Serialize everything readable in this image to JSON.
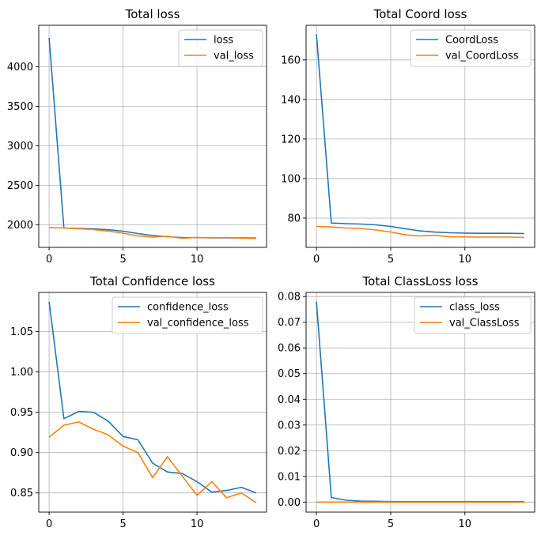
{
  "figure": {
    "x_values": [
      0,
      1,
      2,
      3,
      4,
      5,
      6,
      7,
      8,
      9,
      10,
      11,
      12,
      13,
      14
    ]
  },
  "colors": {
    "series1": "#1f77b4",
    "series2": "#ff7f0e",
    "grid": "#b0b0b0",
    "axis": "#000000"
  },
  "chart_data": [
    {
      "type": "line",
      "title": "Total loss",
      "xlim": [
        -0.7,
        14.7
      ],
      "ylim": [
        1715,
        4525
      ],
      "xticks": [
        0,
        5,
        10
      ],
      "yticks": [
        2000,
        2500,
        3000,
        3500,
        4000
      ],
      "ytick_labels": [
        "2000",
        "2500",
        "3000",
        "3500",
        "4000"
      ],
      "grid": true,
      "legend": "top-right",
      "series": [
        {
          "name": "loss",
          "values": [
            4365,
            1960,
            1955,
            1950,
            1938,
            1920,
            1890,
            1865,
            1850,
            1840,
            1838,
            1836,
            1835,
            1834,
            1833
          ]
        },
        {
          "name": "val_loss",
          "values": [
            1965,
            1960,
            1950,
            1940,
            1920,
            1895,
            1860,
            1845,
            1855,
            1830,
            1840,
            1836,
            1840,
            1830,
            1828
          ]
        }
      ]
    },
    {
      "type": "line",
      "title": "Total Coord loss",
      "xlim": [
        -0.7,
        14.7
      ],
      "ylim": [
        65.2,
        177.5
      ],
      "xticks": [
        0,
        5,
        10
      ],
      "yticks": [
        80,
        100,
        120,
        140,
        160
      ],
      "ytick_labels": [
        "80",
        "100",
        "120",
        "140",
        "160"
      ],
      "grid": true,
      "legend": "top-right",
      "series": [
        {
          "name": "CoordLoss",
          "values": [
            173,
            77.5,
            77.2,
            77.0,
            76.6,
            75.8,
            74.6,
            73.5,
            72.9,
            72.6,
            72.4,
            72.3,
            72.3,
            72.3,
            72.2
          ]
        },
        {
          "name": "val_CoordLoss",
          "values": [
            75.8,
            75.5,
            75.0,
            74.8,
            74.0,
            73.0,
            71.5,
            71.0,
            71.3,
            70.5,
            70.5,
            70.4,
            70.4,
            70.4,
            70.2
          ]
        }
      ]
    },
    {
      "type": "line",
      "title": "Total Confidence loss",
      "xlim": [
        -0.7,
        14.7
      ],
      "ylim": [
        0.8262,
        1.0986
      ],
      "xticks": [
        0,
        5,
        10
      ],
      "yticks": [
        0.85,
        0.9,
        0.95,
        1.0,
        1.05
      ],
      "ytick_labels": [
        "0.85",
        "0.90",
        "0.95",
        "1.00",
        "1.05"
      ],
      "grid": true,
      "legend": "top-right",
      "series": [
        {
          "name": "confidence_loss",
          "values": [
            1.087,
            0.942,
            0.951,
            0.95,
            0.939,
            0.92,
            0.916,
            0.887,
            0.876,
            0.874,
            0.864,
            0.851,
            0.853,
            0.857,
            0.85
          ]
        },
        {
          "name": "val_confidence_loss",
          "values": [
            0.919,
            0.934,
            0.938,
            0.929,
            0.922,
            0.908,
            0.9,
            0.869,
            0.895,
            0.871,
            0.847,
            0.864,
            0.844,
            0.85,
            0.838
          ]
        }
      ]
    },
    {
      "type": "line",
      "title": "Total ClassLoss loss",
      "xlim": [
        -0.7,
        14.7
      ],
      "ylim": [
        -0.0039,
        0.0816
      ],
      "xticks": [
        0,
        5,
        10
      ],
      "yticks": [
        0.0,
        0.01,
        0.02,
        0.03,
        0.04,
        0.05,
        0.06,
        0.07,
        0.08
      ],
      "ytick_labels": [
        "0.00",
        "0.01",
        "0.02",
        "0.03",
        "0.04",
        "0.05",
        "0.06",
        "0.07",
        "0.08"
      ],
      "grid": true,
      "legend": "top-right",
      "series": [
        {
          "name": "class_loss",
          "values": [
            0.078,
            0.0018,
            0.0007,
            0.0004,
            0.0003,
            0.0002,
            0.0002,
            0.0002,
            0.0002,
            0.0002,
            0.0002,
            0.0002,
            0.0002,
            0.0002,
            0.0002
          ]
        },
        {
          "name": "val_ClassLoss",
          "values": [
            0.0,
            0.0,
            0.0,
            0.0,
            0.0,
            0.0,
            0.0,
            0.0,
            0.0,
            0.0,
            0.0,
            0.0,
            0.0,
            0.0,
            0.0
          ]
        }
      ]
    }
  ]
}
